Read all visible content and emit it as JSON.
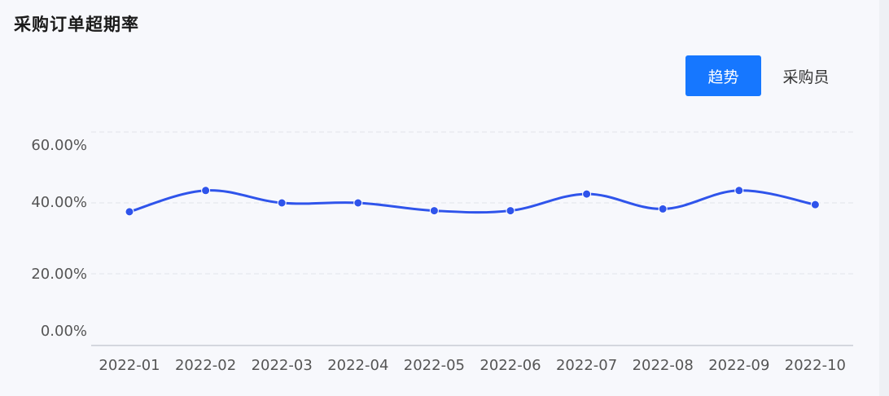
{
  "title": "采购订单超期率",
  "tabs": [
    {
      "label": "趋势",
      "active": true
    },
    {
      "label": "采购员",
      "active": false
    }
  ],
  "colors": {
    "accent": "#1677ff",
    "line": "#2f54eb",
    "grid": "#e1e4ea",
    "axis": "#c8ccd4"
  },
  "chart_data": {
    "type": "line",
    "categories": [
      "2022-01",
      "2022-02",
      "2022-03",
      "2022-04",
      "2022-05",
      "2022-06",
      "2022-07",
      "2022-08",
      "2022-09",
      "2022-10"
    ],
    "series": [
      {
        "values": [
          37.5,
          43.5,
          40.0,
          40.0,
          37.8,
          37.8,
          42.5,
          38.3,
          43.5,
          39.5
        ]
      }
    ],
    "y_ticks": [
      0,
      20,
      40,
      60
    ],
    "y_tick_labels": [
      "0.00%",
      "20.00%",
      "40.00%",
      "60.00%"
    ],
    "ylim": [
      0,
      60
    ],
    "grid": true,
    "smooth": true
  }
}
